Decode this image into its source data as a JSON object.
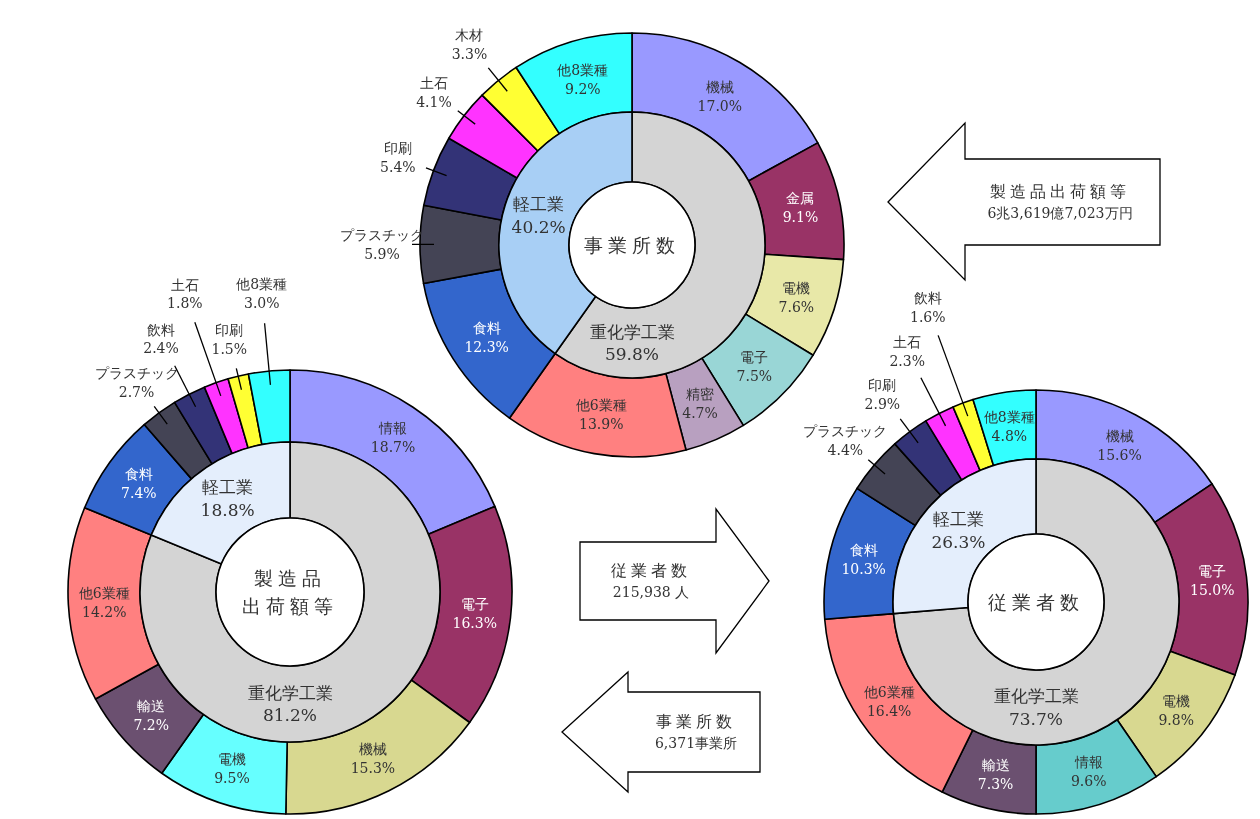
{
  "chart_data": [
    {
      "type": "donut",
      "categories": [
        "機械",
        "金属",
        "電機",
        "電子",
        "精密",
        "他6業種",
        "食料",
        "プラスチック",
        "印刷",
        "土石",
        "木材",
        "他8業種"
      ],
      "values": [
        17.0,
        9.1,
        7.6,
        7.5,
        4.7,
        13.9,
        12.3,
        5.9,
        5.4,
        4.1,
        3.3,
        9.2
      ],
      "value_labels": [
        "17.0%",
        "9.1%",
        "7.6%",
        "7.5%",
        "4.7%",
        "13.9%",
        "12.3%",
        "5.9%",
        "5.4%",
        "4.1%",
        "3.3%",
        "9.2%"
      ],
      "colors": [
        "#9999ff",
        "#993366",
        "#e8e8a8",
        "#99d6d6",
        "#b8a0c0",
        "#ff8080",
        "#3366cc",
        "#444455",
        "#333377",
        "#ff33ff",
        "#ffff33",
        "#33ffff"
      ]
    },
    {
      "type": "donut",
      "title": "事業所数",
      "categories": [
        "重化学工業",
        "軽工業"
      ],
      "values": [
        59.8,
        40.2
      ],
      "value_labels": [
        "59.8%",
        "40.2%"
      ],
      "colors": [
        "#d4d4d4",
        "#a8cff5"
      ]
    },
    {
      "type": "other",
      "annotations": [
        "製造品出荷額等",
        "6兆3,619億7,023万円"
      ]
    },
    {
      "type": "donut",
      "categories": [
        "情報",
        "電子",
        "機械",
        "電機",
        "輸送",
        "他6業種",
        "食料",
        "プラスチック",
        "飲料",
        "土石",
        "印刷",
        "他8業種"
      ],
      "values": [
        18.7,
        16.3,
        15.3,
        9.5,
        7.2,
        14.2,
        7.4,
        2.7,
        2.4,
        1.8,
        1.5,
        3.0
      ],
      "value_labels": [
        "18.7%",
        "16.3%",
        "15.3%",
        "9.5%",
        "7.2%",
        "14.2%",
        "7.4%",
        "2.7%",
        "2.4%",
        "1.8%",
        "1.5%",
        "3.0%"
      ],
      "colors": [
        "#9999ff",
        "#993366",
        "#d8d890",
        "#66ffff",
        "#6b5070",
        "#ff8080",
        "#3366cc",
        "#444455",
        "#333377",
        "#ff33ff",
        "#ffff33",
        "#33ffff"
      ]
    },
    {
      "type": "donut",
      "title": "製造品出荷額等",
      "categories": [
        "重化学工業",
        "軽工業"
      ],
      "values": [
        81.2,
        18.8
      ],
      "value_labels": [
        "81.2%",
        "18.8%"
      ],
      "colors": [
        "#d4d4d4",
        "#e4eefc"
      ]
    },
    {
      "type": "other",
      "annotations": [
        "従業者数",
        "215,938 人"
      ]
    },
    {
      "type": "other",
      "annotations": [
        "事業所数",
        "6,371事業所"
      ]
    },
    {
      "type": "donut",
      "categories": [
        "機械",
        "電子",
        "電機",
        "情報",
        "輸送",
        "他6業種",
        "食料",
        "プラスチック",
        "印刷",
        "土石",
        "飲料",
        "他8業種"
      ],
      "values": [
        15.6,
        15.0,
        9.8,
        9.6,
        7.3,
        16.4,
        10.3,
        4.4,
        2.9,
        2.3,
        1.6,
        4.8
      ],
      "value_labels": [
        "15.6%",
        "15.0%",
        "9.8%",
        "9.6%",
        "7.3%",
        "16.4%",
        "10.3%",
        "4.4%",
        "2.9%",
        "2.3%",
        "1.6%",
        "4.8%"
      ],
      "colors": [
        "#9999ff",
        "#993366",
        "#d8d890",
        "#66cccc",
        "#6b5070",
        "#ff8080",
        "#3366cc",
        "#444455",
        "#333377",
        "#ff33ff",
        "#ffff33",
        "#33ffff"
      ]
    },
    {
      "type": "donut",
      "title": "従業者数",
      "categories": [
        "重化学工業",
        "軽工業"
      ],
      "values": [
        73.7,
        26.3
      ],
      "value_labels": [
        "73.7%",
        "26.3%"
      ],
      "colors": [
        "#d4d4d4",
        "#e4eefc"
      ]
    }
  ]
}
